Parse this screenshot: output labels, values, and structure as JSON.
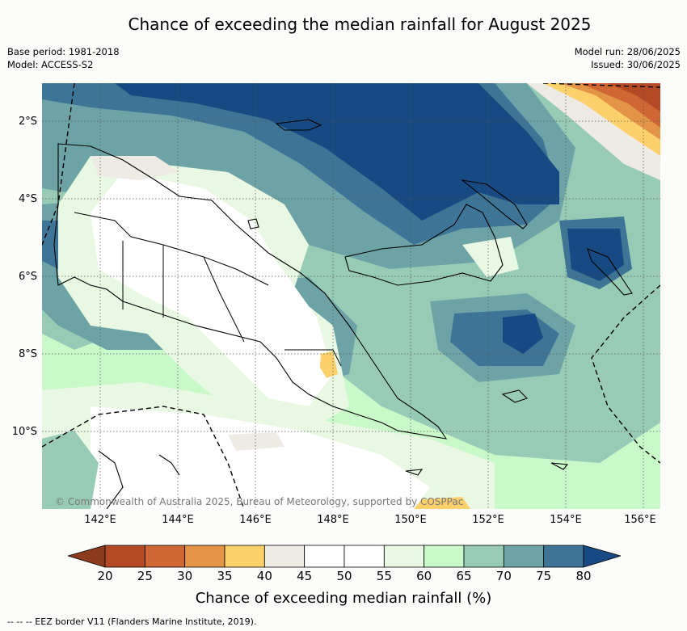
{
  "title": "Chance of exceeding the median rainfall for August 2025",
  "meta_left": [
    "Base period: 1981-2018",
    "Model: ACCESS-S2"
  ],
  "meta_right": [
    "Model run: 28/06/2025",
    "Issued: 30/06/2025"
  ],
  "lat_labels": [
    "2°S",
    "4°S",
    "6°S",
    "8°S",
    "10°S"
  ],
  "lon_labels": [
    "142°E",
    "144°E",
    "146°E",
    "148°E",
    "150°E",
    "152°E",
    "154°E",
    "156°E"
  ],
  "copyright": "© Commonwealth of Australia 2025, Bureau of Meteorology, supported by COSPPac",
  "colorbar": {
    "ticks": [
      "20",
      "25",
      "30",
      "35",
      "40",
      "45",
      "50",
      "55",
      "60",
      "65",
      "70",
      "75",
      "80"
    ],
    "colors": [
      "#8c3a1e",
      "#b34a25",
      "#cf6633",
      "#e49447",
      "#fcd06b",
      "#eeeae4",
      "#ffffff",
      "#ffffff",
      "#e9f8e3",
      "#c9f8c9",
      "#98cbb5",
      "#6da3a6",
      "#3e7596",
      "#174a82"
    ],
    "title": "Chance of exceeding median rainfall (%)"
  },
  "footnote": "-- -- -- EEZ border V11 (Flanders Marine Institute, 2019)."
}
